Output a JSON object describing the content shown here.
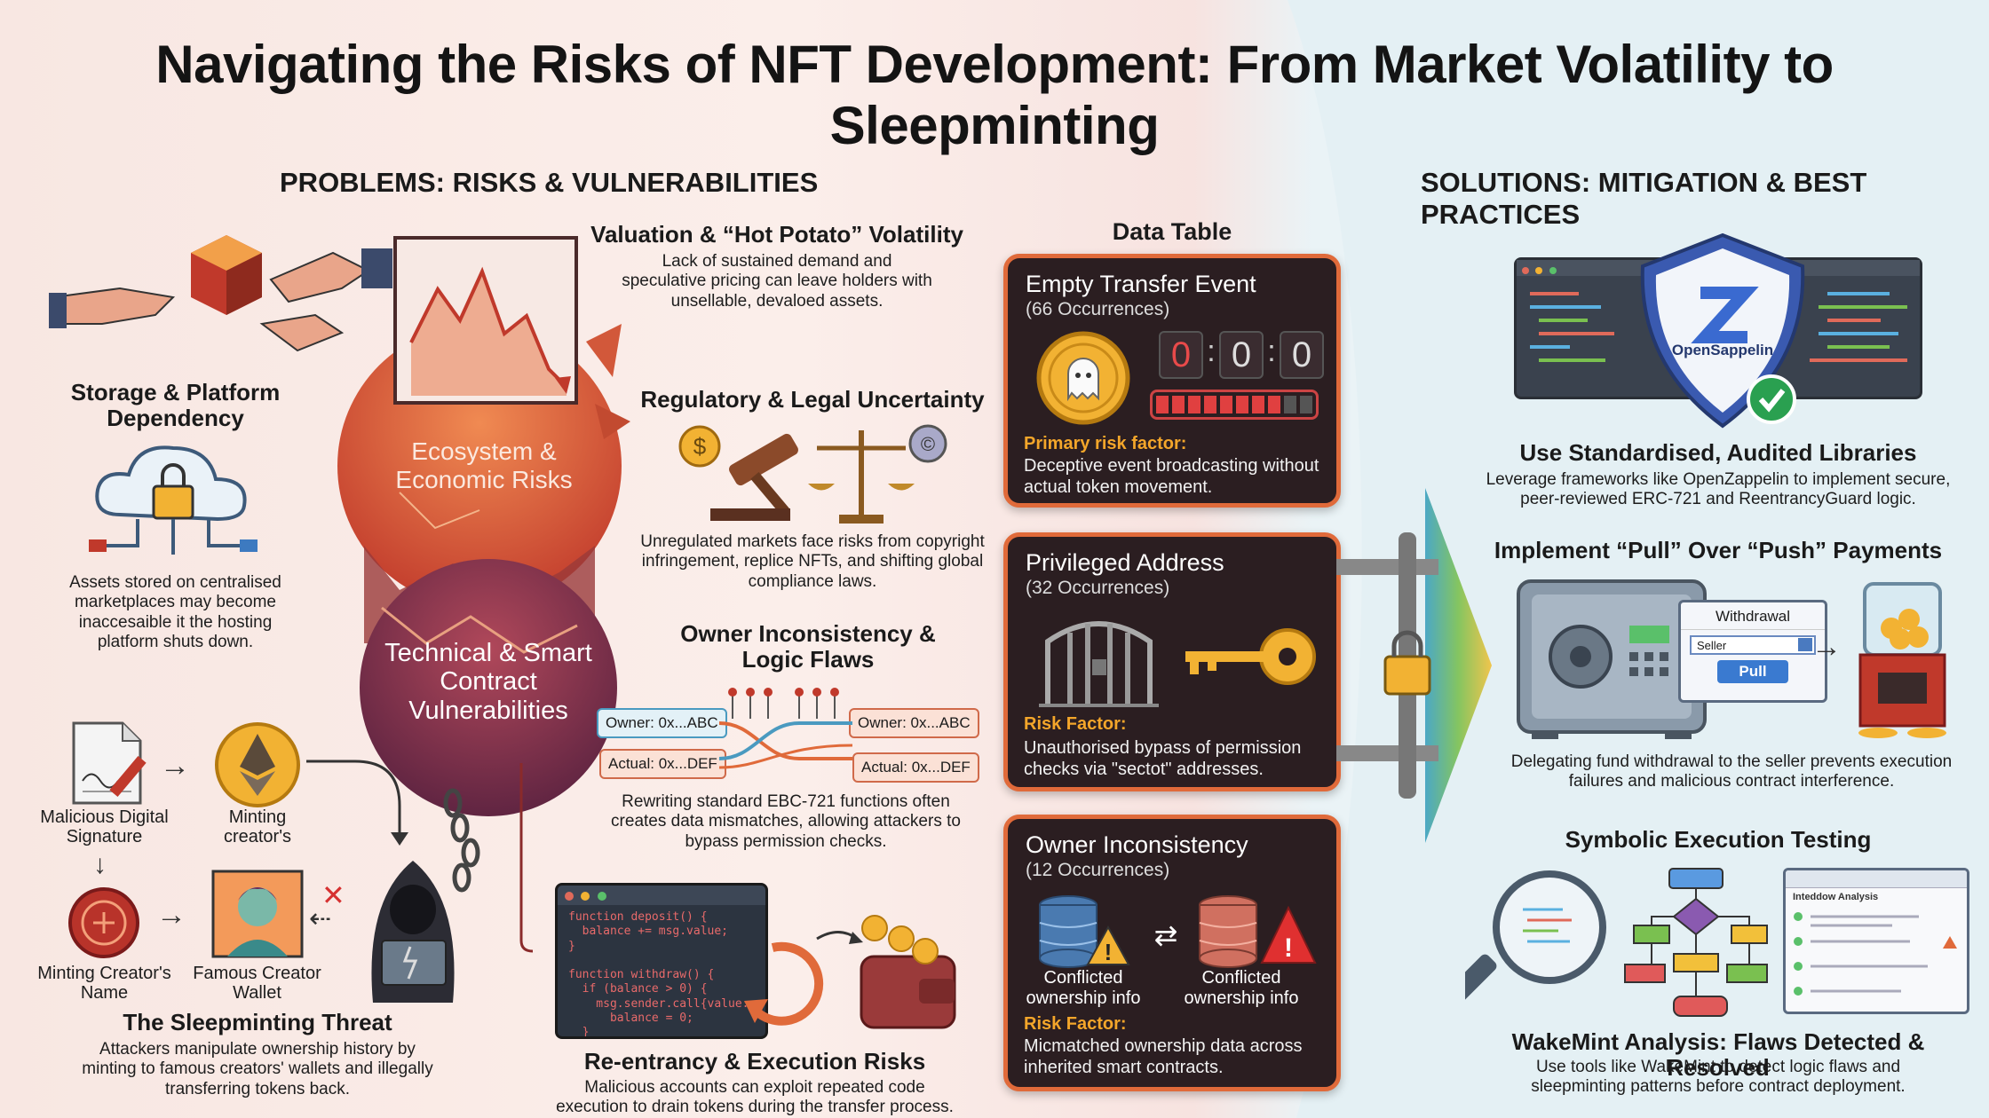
{
  "title": "Navigating the Risks of NFT Development: From Market Volatility to Sleepminting",
  "problems_heading": "PROBLEMS: RISKS & VULNERABILITIES",
  "solutions_heading": "SOLUTIONS: MITIGATION & BEST PRACTICES",
  "spheres": {
    "ecosystem": "Ecosystem & Economic Risks",
    "technical": "Technical & Smart Contract Vulnerabilities"
  },
  "valuation": {
    "title": "Valuation & “Hot Potato” Volatility",
    "text": "Lack of sustained demand and speculative pricing can leave holders with unsellable, devaloed assets."
  },
  "storage": {
    "title": "Storage & Platform Dependency",
    "text": "Assets stored on centralised marketplaces may become inaccesaible it the hosting platform shuts down."
  },
  "regulatory": {
    "title": "Regulatory & Legal Uncertainty",
    "text": "Unregulated markets face risks from copyright infringement, replice NFTs, and shifting global compliance laws."
  },
  "owner_logic": {
    "title": "Owner Inconsistency & Logic Flaws",
    "text": "Rewriting standard EBC-721 functions often creates data mismatches, allowing attackers to bypass permission checks.",
    "tags": [
      "Owner: 0x...ABC",
      "Actual: 0x...DEF",
      "Owner: 0x...ABC",
      "Actual: 0x...DEF"
    ]
  },
  "sleepminting": {
    "title": "The Sleepminting Threat",
    "text": "Attackers manipulate ownership history by minting to famous creators' wallets and illegally transferring tokens back.",
    "labels": {
      "signature": "Malicious Digital Signature",
      "minting": "Minting creator's",
      "creator_name": "Minting Creator's Name",
      "wallet": "Famous Creator Wallet"
    }
  },
  "reentrancy": {
    "title": "Re-entrancy & Execution Risks",
    "text": "Malicious accounts can exploit repeated code execution to drain tokens during the transfer process.",
    "code": "function deposit() {\n  balance += msg.value;\n}\n\nfunction withdraw() {\n  if (balance > 0) {\n    msg.sender.call{value:\n      balance = 0;\n  }\n}"
  },
  "data_table": {
    "heading": "Data Table",
    "cards": [
      {
        "title": "Empty Transfer Event",
        "count": "(66 Occurrences)",
        "digits": [
          "0",
          "0",
          "0"
        ],
        "risk_label": "Primary risk factor:",
        "risk_text": "Deceptive event broadcasting without actual token movement."
      },
      {
        "title": "Privileged Address",
        "count": "(32 Occurrences)",
        "risk_label": "Risk Factor:",
        "risk_text": "Unauthorised bypass of permission checks via \"sectot\" addresses."
      },
      {
        "title": "Owner Inconsistency",
        "count": "(12 Occurrences)",
        "labels": [
          "Conflicted ownership info",
          "Conflicted ownership info"
        ],
        "risk_label": "Risk Factor:",
        "risk_text": "Micmatched ownership data across inherited smart contracts."
      }
    ]
  },
  "solutions": {
    "libraries": {
      "title": "Use Standardised, Audited Libraries",
      "text": "Leverage frameworks like OpenZappelin to implement secure, peer-reviewed ERC-721 and ReentrancyGuard logic.",
      "shield_label": "OpenSappelin"
    },
    "pull": {
      "title": "Implement “Pull” Over “Push” Payments",
      "text": "Delegating fund withdrawal to the seller prevents execution failures and malicious contract interference.",
      "dialog_title": "Withdrawal",
      "field": "Seller",
      "button": "Pull"
    },
    "symbolic": {
      "title": "Symbolic Execution Testing",
      "subtitle": "WakeMint Analysis: Flaws Detected & Resolved",
      "text": "Use tools like WakeMint to detect logic flaws and sleepminting patterns before contract deployment.",
      "panel": "Inteddow Analysis"
    }
  },
  "colors": {
    "accent": "#e06a3a",
    "card_bg": "#2b1e21",
    "risk": "#f4a62a",
    "ecosystem": "#d9583a",
    "technical": "#7a2f4a"
  }
}
